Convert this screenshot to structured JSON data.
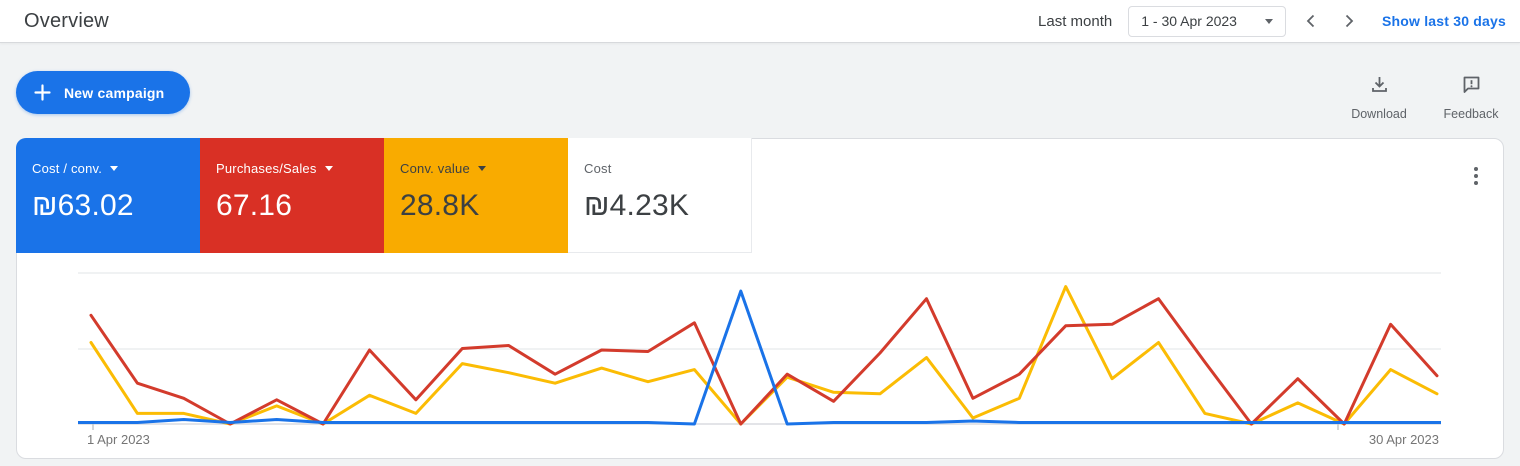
{
  "header": {
    "title": "Overview",
    "date_range_label": "Last month",
    "date_range_value": "1 - 30 Apr 2023",
    "show_last_link": "Show last 30 days"
  },
  "toolbar": {
    "new_campaign_label": "New campaign",
    "download_label": "Download",
    "feedback_label": "Feedback"
  },
  "scorecards": [
    {
      "label": "Cost / conv.",
      "value": "₪63.02",
      "bg": "#1a73e8",
      "label_color": "#ffffff",
      "value_color": "#ffffff",
      "has_dropdown": true
    },
    {
      "label": "Purchases/Sales",
      "value": "67.16",
      "bg": "#d93025",
      "label_color": "#ffffff",
      "value_color": "#ffffff",
      "has_dropdown": true
    },
    {
      "label": "Conv. value",
      "value": "28.8K",
      "bg": "#f9ab00",
      "label_color": "#3c4043",
      "value_color": "#3c4043",
      "has_dropdown": true
    },
    {
      "label": "Cost",
      "value": "₪4.23K",
      "bg": "#ffffff",
      "label_color": "#5f6368",
      "value_color": "#3c4043",
      "has_dropdown": false
    }
  ],
  "chart_data": {
    "type": "line",
    "x": [
      1,
      2,
      3,
      4,
      5,
      6,
      7,
      8,
      9,
      10,
      11,
      12,
      13,
      14,
      15,
      16,
      17,
      18,
      19,
      20,
      21,
      22,
      23,
      24,
      25,
      26,
      27,
      28,
      29,
      30
    ],
    "x_unit": "day of April 2023",
    "x_start_label": "1 Apr 2023",
    "x_end_label": "30 Apr 2023",
    "ylim": [
      0,
      100
    ],
    "y_axis_labels_shown": false,
    "grid": true,
    "series": [
      {
        "name": "Cost / conv.",
        "color": "#1a73e8",
        "extend_to_edges": true,
        "values": [
          1,
          1,
          3,
          1,
          3,
          1,
          1,
          1,
          1,
          1,
          1,
          1,
          1,
          0,
          88,
          0,
          1,
          1,
          1,
          2,
          1,
          1,
          1,
          1,
          1,
          1,
          1,
          1,
          1,
          1
        ]
      },
      {
        "name": "Purchases/Sales",
        "color": "#d33b2c",
        "extend_to_edges": false,
        "values": [
          72,
          27,
          17,
          0,
          16,
          0,
          49,
          16,
          50,
          52,
          33,
          49,
          48,
          67,
          0,
          33,
          15,
          47,
          83,
          17,
          33,
          65,
          66,
          83,
          41,
          0,
          30,
          0,
          66,
          32
        ]
      },
      {
        "name": "Conv. value",
        "color": "#fbbc04",
        "extend_to_edges": false,
        "values": [
          54,
          7,
          7,
          0,
          12,
          0,
          19,
          7,
          40,
          34,
          27,
          37,
          28,
          36,
          0,
          31,
          21,
          20,
          44,
          4,
          17,
          91,
          30,
          54,
          7,
          0,
          14,
          0,
          36,
          20
        ]
      }
    ]
  },
  "colors": {
    "accent_blue": "#1a73e8",
    "red": "#d93025",
    "yellow": "#f9ab00",
    "text_dark": "#3c4043",
    "text_gray": "#5f6368"
  }
}
